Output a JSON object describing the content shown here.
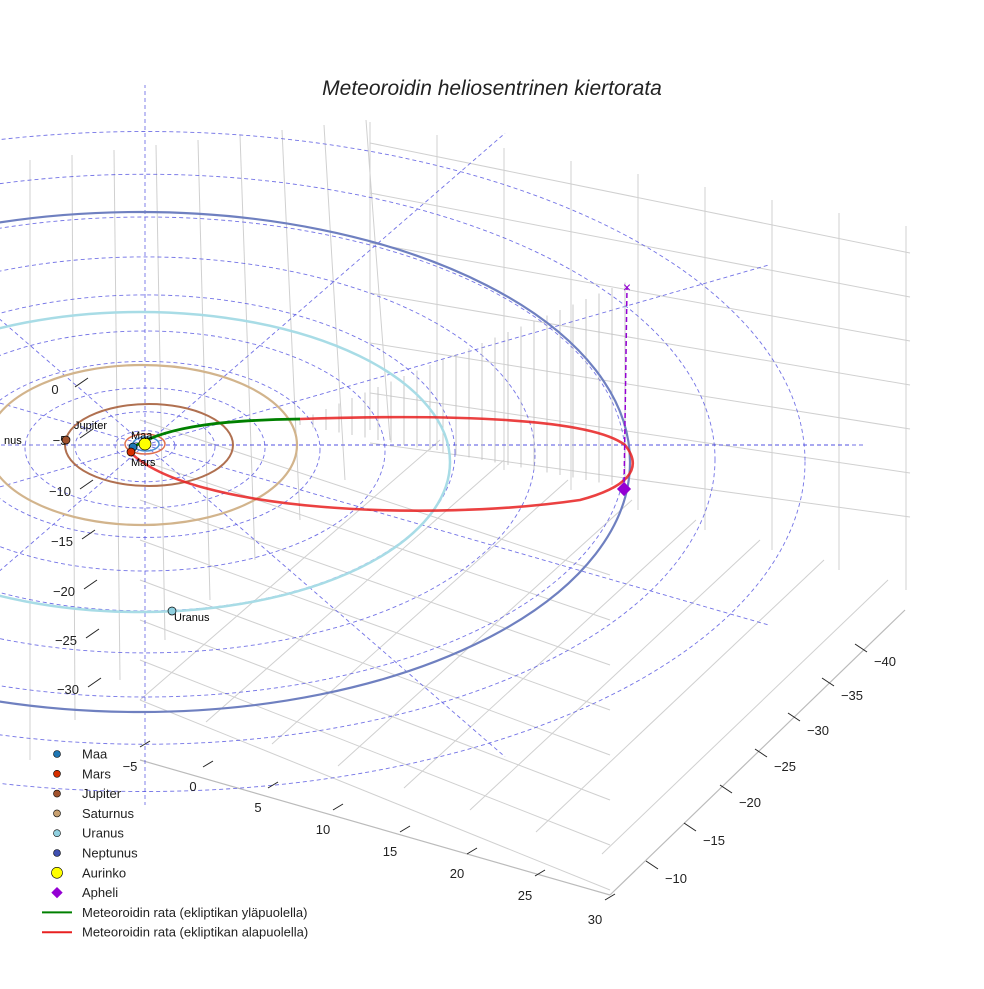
{
  "chart_data": {
    "type": "line",
    "projection": "3d",
    "title": "Meteoroidin heliosentrinen kiertorata",
    "axes": {
      "left_ticks": [
        "0",
        "−5",
        "−10",
        "−15",
        "−20",
        "−25",
        "−30"
      ],
      "bottom_ticks": [
        "−5",
        "0",
        "5",
        "10",
        "15",
        "20",
        "25",
        "30"
      ],
      "right_ticks": [
        "−40",
        "−35",
        "−30",
        "−25",
        "−20",
        "−15",
        "−10"
      ],
      "grid": true
    },
    "planet_labels": [
      "nus",
      "Jupiter",
      "Maa",
      "Mars",
      "Uranus"
    ],
    "legend": {
      "placement": "bottom-left",
      "entries": [
        {
          "label": "Maa",
          "marker": "circle",
          "color": "#1f77b4"
        },
        {
          "label": "Mars",
          "marker": "circle",
          "color": "#d62f00"
        },
        {
          "label": "Jupiter",
          "marker": "circle",
          "color": "#a0522d"
        },
        {
          "label": "Saturnus",
          "marker": "circle",
          "color": "#c8a070"
        },
        {
          "label": "Uranus",
          "marker": "circle",
          "color": "#8fd0e0"
        },
        {
          "label": "Neptunus",
          "marker": "circle",
          "color": "#4050b0"
        },
        {
          "label": "Aurinko",
          "marker": "circle-large",
          "color": "#ffff00"
        },
        {
          "label": "Apheli",
          "marker": "diamond",
          "color": "#9400d3"
        },
        {
          "label": "Meteoroidin rata (ekliptikan yläpuolella)",
          "marker": "line",
          "color": "#008000"
        },
        {
          "label": "Meteoroidin rata (ekliptikan alapuolella)",
          "marker": "line",
          "color": "#e82020"
        }
      ]
    },
    "colors": {
      "neptune_orbit": "#6f80c0",
      "uranus_orbit": "#a8dce6",
      "saturn_orbit": "#d2b48c",
      "jupiter_orbit": "#b07050",
      "mars_orbit": "#e07050",
      "earth_orbit": "#4a90d0",
      "ecliptic_grid": "#5050e0",
      "apheli": "#9400d3"
    }
  }
}
